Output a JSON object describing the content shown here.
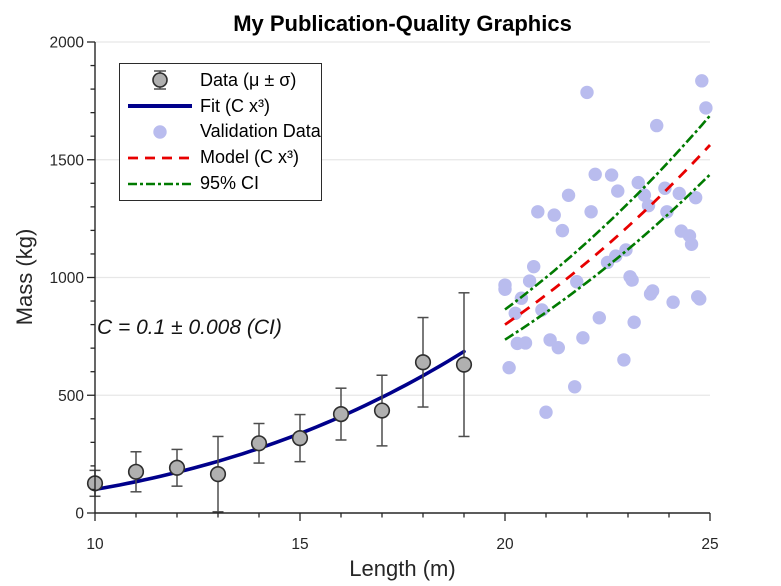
{
  "chart_data": {
    "type": "line",
    "subtype": "composite: errorbar + fit line + validation scatter + model line + confidence-interval lines",
    "title": "My Publication-Quality Graphics",
    "xlabel": "Length (m)",
    "ylabel": "Mass (kg)",
    "xlim": [
      10,
      25
    ],
    "ylim": [
      0,
      2000
    ],
    "xticks": {
      "major": [
        10,
        15,
        20,
        25
      ],
      "labels": [
        "10",
        "15",
        "20",
        "25"
      ],
      "minor_step": 1
    },
    "yticks": {
      "major": [
        0,
        500,
        1000,
        1500,
        2000
      ],
      "labels": [
        "0",
        "500",
        "1000",
        "1500",
        "2000"
      ],
      "minor_step": 100
    },
    "grid": "horizontal gridlines at major y ticks only, tick direction out, no top/right box",
    "annotation": {
      "text": "C = 0.1 ± 0.008 (CI)",
      "x": 10.1,
      "y": 800
    },
    "colors": {
      "fit_line": "#00008b",
      "model_line": "#e80000",
      "ci_line": "#007a00",
      "validation_marker": "#b9bcee",
      "data_marker_face": "#b0b0b0",
      "data_marker_edge": "#2f2f2f",
      "errorbar": "#4d4d4d",
      "grid": "#e7e7e7",
      "axis": "#262626",
      "background": "#ffffff"
    },
    "series": [
      {
        "id": "data",
        "name": "Data (μ ± σ)",
        "type": "errorbar",
        "x": [
          10,
          11,
          12,
          13,
          14,
          15,
          16,
          17,
          18,
          19
        ],
        "y": [
          126,
          175,
          192,
          165,
          296,
          318,
          420,
          435,
          640,
          630
        ],
        "err": [
          55,
          85,
          78,
          160,
          84,
          100,
          110,
          150,
          190,
          305
        ]
      },
      {
        "id": "fit",
        "name": "Fit (C x³)",
        "type": "line",
        "formula": "y = C * x^3",
        "C": 0.1,
        "x_range": [
          10,
          19
        ],
        "style": "solid"
      },
      {
        "id": "validation",
        "name": "Validation Data",
        "type": "scatter",
        "points": [
          [
            20.0,
            950
          ],
          [
            20.0,
            968
          ],
          [
            20.1,
            617
          ],
          [
            20.25,
            848
          ],
          [
            20.3,
            720
          ],
          [
            20.4,
            912
          ],
          [
            20.5,
            722
          ],
          [
            20.6,
            985
          ],
          [
            20.7,
            1046
          ],
          [
            20.8,
            1279
          ],
          [
            20.9,
            862
          ],
          [
            21.0,
            428
          ],
          [
            21.1,
            735
          ],
          [
            21.2,
            1265
          ],
          [
            21.3,
            702
          ],
          [
            21.4,
            1199
          ],
          [
            21.55,
            1349
          ],
          [
            21.7,
            536
          ],
          [
            21.75,
            982
          ],
          [
            21.9,
            744
          ],
          [
            22.0,
            1786
          ],
          [
            22.1,
            1279
          ],
          [
            22.2,
            1438
          ],
          [
            22.3,
            829
          ],
          [
            22.5,
            1064
          ],
          [
            22.6,
            1435
          ],
          [
            22.7,
            1091
          ],
          [
            22.75,
            1367
          ],
          [
            22.9,
            650
          ],
          [
            22.95,
            1117
          ],
          [
            23.05,
            1003
          ],
          [
            23.1,
            989
          ],
          [
            23.15,
            810
          ],
          [
            23.25,
            1403
          ],
          [
            23.4,
            1350
          ],
          [
            23.5,
            1305
          ],
          [
            23.55,
            930
          ],
          [
            23.6,
            943
          ],
          [
            23.7,
            1645
          ],
          [
            23.9,
            1379
          ],
          [
            23.95,
            1279
          ],
          [
            24.1,
            895
          ],
          [
            24.25,
            1357
          ],
          [
            24.3,
            1197
          ],
          [
            24.5,
            1177
          ],
          [
            24.55,
            1141
          ],
          [
            24.65,
            1339
          ],
          [
            24.7,
            918
          ],
          [
            24.75,
            909
          ],
          [
            24.8,
            1835
          ],
          [
            24.9,
            1720
          ]
        ]
      },
      {
        "id": "model",
        "name": "Model (C x³)",
        "type": "line",
        "formula": "y = C * x^3",
        "C": 0.1,
        "x_range": [
          20,
          25
        ],
        "style": "dashed"
      },
      {
        "id": "ci",
        "name": "95% CI",
        "type": "ci-lines",
        "formula": "y = C * x^3",
        "C_upper": 0.108,
        "C_lower": 0.092,
        "x_range": [
          20,
          25
        ],
        "style": "dash-dot"
      }
    ],
    "legend": {
      "position": "top-left",
      "entries": [
        {
          "label": "Data (μ ± σ)",
          "swatch": "errorbar-marker"
        },
        {
          "label": "Fit (C x³)",
          "swatch": "solid-line"
        },
        {
          "label": "Validation Data",
          "swatch": "dot"
        },
        {
          "label": "Model (C x³)",
          "swatch": "dashed-line"
        },
        {
          "label": "95% CI",
          "swatch": "dash-dot-line"
        }
      ]
    }
  }
}
